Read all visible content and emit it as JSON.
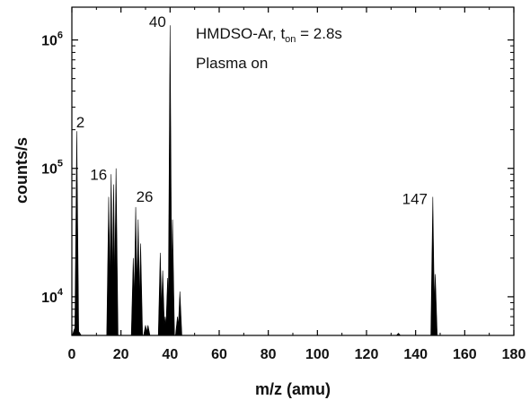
{
  "chart_data": {
    "type": "bar",
    "xlabel": "m/z (amu)",
    "ylabel": "counts/s",
    "xlim": [
      0,
      180
    ],
    "ylim": [
      5000,
      1800000
    ],
    "yscale": "log",
    "x_ticks": [
      0,
      20,
      40,
      60,
      80,
      100,
      120,
      140,
      160,
      180
    ],
    "y_ticks": [
      {
        "value": 10000,
        "base": "10",
        "exp": "4"
      },
      {
        "value": 100000,
        "base": "10",
        "exp": "5"
      },
      {
        "value": 1000000,
        "base": "10",
        "exp": "6"
      }
    ],
    "annotation": {
      "line1_main": "HMDSO-Ar, t",
      "line1_sub": "on",
      "line1_tail": " = 2.8s",
      "line2": "Plasma on"
    },
    "peaks": [
      {
        "x": 1,
        "y": 5600
      },
      {
        "x": 2,
        "y": 195000,
        "label": "2"
      },
      {
        "x": 3,
        "y": 5300
      },
      {
        "x": 15,
        "y": 60000
      },
      {
        "x": 16,
        "y": 90000,
        "label": "16"
      },
      {
        "x": 17,
        "y": 75000
      },
      {
        "x": 18,
        "y": 100000
      },
      {
        "x": 25,
        "y": 20000
      },
      {
        "x": 26,
        "y": 50000,
        "label": "26"
      },
      {
        "x": 27,
        "y": 40000
      },
      {
        "x": 28,
        "y": 26000
      },
      {
        "x": 30,
        "y": 6000
      },
      {
        "x": 31,
        "y": 6000
      },
      {
        "x": 36,
        "y": 22000
      },
      {
        "x": 37,
        "y": 16000
      },
      {
        "x": 38,
        "y": 7000
      },
      {
        "x": 39,
        "y": 14000
      },
      {
        "x": 40,
        "y": 1300000,
        "label": "40"
      },
      {
        "x": 41,
        "y": 40000
      },
      {
        "x": 43,
        "y": 7000
      },
      {
        "x": 44,
        "y": 11000
      },
      {
        "x": 133,
        "y": 5200
      },
      {
        "x": 147,
        "y": 60000,
        "label": "147"
      },
      {
        "x": 148,
        "y": 15000
      }
    ]
  }
}
